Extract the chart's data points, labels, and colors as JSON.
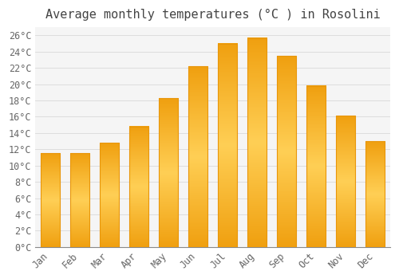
{
  "title": "Average monthly temperatures (°C ) in Rosolini",
  "months": [
    "Jan",
    "Feb",
    "Mar",
    "Apr",
    "May",
    "Jun",
    "Jul",
    "Aug",
    "Sep",
    "Oct",
    "Nov",
    "Dec"
  ],
  "temperatures": [
    11.5,
    11.5,
    12.8,
    14.8,
    18.3,
    22.2,
    25.0,
    25.7,
    23.5,
    19.8,
    16.1,
    13.0
  ],
  "bar_color": "#FDB92E",
  "bar_edge_color": "#E8960A",
  "background_color": "#FFFFFF",
  "plot_bg_color": "#F5F5F5",
  "grid_color": "#DDDDDD",
  "title_color": "#444444",
  "tick_label_color": "#666666",
  "ylim": [
    0,
    27
  ],
  "ytick_step": 2,
  "title_fontsize": 11,
  "tick_fontsize": 8.5,
  "font_family": "monospace"
}
